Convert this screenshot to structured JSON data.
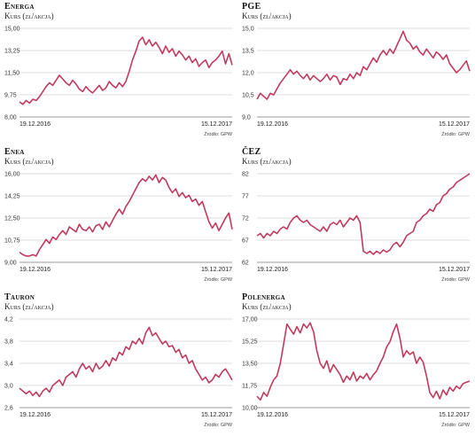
{
  "chart_data": [
    {
      "type": "line",
      "title": "Energa",
      "subtitle": "Kurs (zł/akcja)",
      "ylim": [
        8.0,
        15.0
      ],
      "yticks": [
        "8,00",
        "9,75",
        "11,50",
        "13,25",
        "15,00"
      ],
      "x_start": "19.12.2016",
      "x_end": "15.12.2017",
      "source": "Źródło: GPW",
      "color": "#c03a5e",
      "values": [
        9.2,
        9.0,
        9.3,
        9.1,
        9.4,
        9.3,
        9.6,
        10.0,
        10.4,
        10.7,
        10.5,
        10.9,
        11.3,
        11.0,
        10.7,
        10.5,
        10.9,
        10.6,
        10.2,
        10.0,
        10.4,
        10.1,
        9.9,
        10.2,
        10.5,
        10.1,
        10.3,
        10.8,
        10.5,
        10.3,
        10.7,
        10.4,
        10.8,
        11.6,
        12.5,
        13.2,
        14.0,
        14.3,
        13.7,
        14.1,
        13.6,
        13.9,
        13.5,
        13.0,
        13.6,
        13.1,
        13.4,
        12.8,
        13.2,
        12.9,
        12.5,
        12.8,
        12.3,
        12.6,
        12.0,
        12.3,
        12.5,
        11.9,
        12.3,
        12.5,
        12.8,
        13.2,
        12.2,
        13.0,
        12.1
      ]
    },
    {
      "type": "line",
      "title": "PGE",
      "subtitle": "Kurs (zł/akcja)",
      "ylim": [
        9.0,
        15.0
      ],
      "yticks": [
        "9,0",
        "10,5",
        "12,0",
        "13,5",
        "15,0"
      ],
      "x_start": "19.12.2016",
      "x_end": "15.12.2017",
      "source": "Źródło: GPW",
      "color": "#c03a5e",
      "values": [
        10.2,
        10.6,
        10.4,
        10.2,
        10.6,
        10.5,
        10.9,
        11.3,
        11.6,
        11.9,
        12.2,
        11.9,
        12.1,
        11.8,
        11.6,
        11.9,
        11.5,
        11.8,
        11.6,
        11.4,
        11.6,
        11.9,
        11.5,
        11.8,
        11.7,
        11.2,
        11.6,
        11.5,
        11.9,
        11.6,
        12.0,
        11.8,
        12.4,
        12.2,
        12.6,
        13.0,
        12.7,
        13.2,
        13.5,
        13.2,
        13.6,
        13.3,
        13.8,
        14.3,
        14.8,
        14.2,
        14.0,
        13.6,
        13.8,
        13.4,
        13.2,
        13.6,
        13.3,
        13.0,
        13.4,
        13.2,
        12.9,
        13.2,
        12.6,
        12.3,
        12.0,
        12.2,
        12.5,
        12.8,
        12.1
      ]
    },
    {
      "type": "line",
      "title": "Enea",
      "subtitle": "Kurs (zł/akcja)",
      "ylim": [
        9.0,
        16.0
      ],
      "yticks": [
        "9,00",
        "10,75",
        "12,50",
        "14,25",
        "16,00"
      ],
      "x_start": "19.12.2016",
      "x_end": "15.12.2017",
      "source": "Źródło: GPW",
      "color": "#c03a5e",
      "values": [
        9.8,
        9.6,
        9.5,
        9.5,
        9.6,
        9.5,
        10.0,
        10.4,
        10.8,
        10.5,
        11.0,
        10.8,
        11.2,
        11.5,
        11.2,
        11.8,
        11.6,
        11.4,
        12.0,
        11.6,
        11.5,
        11.8,
        11.4,
        11.9,
        12.0,
        11.6,
        12.2,
        11.8,
        12.3,
        12.8,
        13.2,
        12.8,
        13.4,
        13.8,
        14.3,
        14.8,
        15.3,
        15.6,
        15.4,
        15.8,
        15.5,
        15.9,
        15.3,
        15.7,
        15.5,
        14.9,
        14.5,
        14.8,
        14.2,
        14.5,
        14.1,
        14.3,
        13.8,
        14.0,
        13.5,
        13.8,
        13.0,
        12.2,
        11.7,
        12.1,
        11.5,
        12.0,
        12.5,
        12.9,
        11.6
      ]
    },
    {
      "type": "line",
      "title": "ČEZ",
      "subtitle": "Kurs (zł/akcja)",
      "ylim": [
        62,
        82
      ],
      "yticks": [
        "62",
        "67",
        "72",
        "77",
        "82"
      ],
      "x_start": "19.12.2016",
      "x_end": "15.12.2017",
      "source": "Źródło: GPW",
      "color": "#c03a5e",
      "values": [
        68,
        68.5,
        67.5,
        68.5,
        68,
        69,
        68.5,
        69.5,
        70,
        69.5,
        71,
        72,
        72.5,
        71.5,
        71,
        71.5,
        70.5,
        70,
        69.5,
        69,
        70,
        69,
        70.5,
        71,
        70.5,
        71.5,
        70,
        71,
        72,
        71.5,
        72.5,
        71,
        64.5,
        64,
        64.5,
        63.8,
        64.5,
        64,
        64.8,
        64.3,
        64.8,
        66,
        66.5,
        65.5,
        66.5,
        68,
        68.5,
        69,
        71,
        71.5,
        72.5,
        73,
        74,
        73.5,
        75,
        75.5,
        77,
        77.5,
        78.5,
        79,
        80,
        80.5,
        81,
        81.5,
        82
      ]
    },
    {
      "type": "line",
      "title": "Tauron",
      "subtitle": "Kurs (zł/akcja)",
      "ylim": [
        2.6,
        4.2
      ],
      "yticks": [
        "2,6",
        "3,0",
        "3,4",
        "3,8",
        "4,2"
      ],
      "x_start": "19.12.2016",
      "x_end": "15.12.2017",
      "source": "Źródło: GPW",
      "color": "#c03a5e",
      "values": [
        2.95,
        2.9,
        2.85,
        2.9,
        2.82,
        2.88,
        2.8,
        2.9,
        2.95,
        2.88,
        3.0,
        3.05,
        3.1,
        3.0,
        3.15,
        3.2,
        3.25,
        3.15,
        3.3,
        3.4,
        3.3,
        3.35,
        3.25,
        3.4,
        3.3,
        3.35,
        3.45,
        3.35,
        3.5,
        3.45,
        3.6,
        3.55,
        3.7,
        3.65,
        3.8,
        3.75,
        3.85,
        3.75,
        3.95,
        4.05,
        3.9,
        3.95,
        3.85,
        3.75,
        3.8,
        3.7,
        3.72,
        3.6,
        3.65,
        3.5,
        3.55,
        3.4,
        3.45,
        3.3,
        3.2,
        3.1,
        3.15,
        3.05,
        3.1,
        3.2,
        3.15,
        3.25,
        3.3,
        3.2,
        3.1
      ]
    },
    {
      "type": "line",
      "title": "Polenerga",
      "subtitle": "Kurs (zł/akcja)",
      "ylim": [
        10.0,
        17.0
      ],
      "yticks": [
        "10,00",
        "11,75",
        "13,50",
        "15,25",
        "17,00"
      ],
      "x_start": "19.12.2016",
      "x_end": "15.12.2017",
      "source": "Źródło: GPW",
      "color": "#c03a5e",
      "values": [
        10.9,
        10.6,
        11.2,
        10.9,
        11.6,
        12.2,
        12.5,
        13.5,
        15.0,
        16.6,
        16.2,
        15.8,
        16.4,
        15.9,
        16.6,
        16.3,
        16.7,
        16.0,
        14.5,
        13.5,
        13.1,
        13.7,
        12.8,
        13.4,
        13.0,
        12.6,
        12.0,
        12.5,
        12.2,
        12.8,
        12.1,
        12.5,
        12.3,
        12.7,
        12.2,
        12.6,
        12.9,
        13.5,
        14.0,
        14.8,
        15.2,
        16.0,
        16.6,
        15.5,
        14.0,
        14.5,
        14.2,
        14.4,
        13.5,
        14.0,
        13.6,
        12.5,
        11.2,
        10.8,
        11.3,
        10.7,
        11.4,
        11.0,
        11.6,
        11.3,
        11.7,
        11.5,
        11.9,
        12.0,
        12.1
      ]
    }
  ]
}
